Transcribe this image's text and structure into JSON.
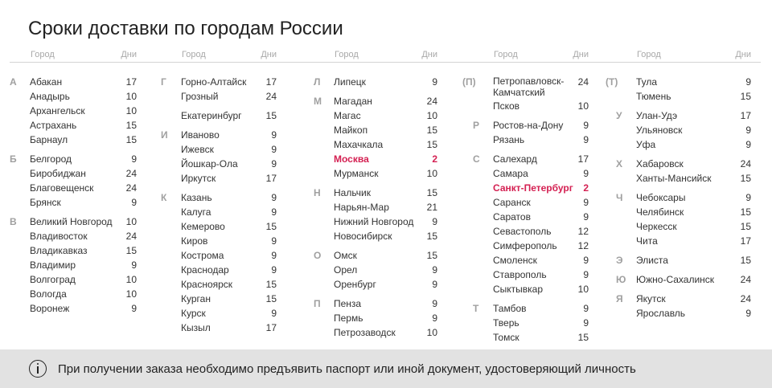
{
  "title": "Сроки доставки по городам России",
  "header": {
    "city": "Город",
    "days": "Дни"
  },
  "columns": [
    {
      "groups": [
        {
          "letter": "А",
          "rows": [
            {
              "city": "Абакан",
              "days": "17"
            },
            {
              "city": "Анадырь",
              "days": "10"
            },
            {
              "city": "Архангельск",
              "days": "10"
            },
            {
              "city": "Астрахань",
              "days": "15"
            },
            {
              "city": "Барнаул",
              "days": "15"
            }
          ]
        },
        {
          "letter": "Б",
          "rows": [
            {
              "city": "Белгород",
              "days": "9"
            },
            {
              "city": "Биробиджан",
              "days": "24"
            },
            {
              "city": "Благовещенск",
              "days": "24"
            },
            {
              "city": "Брянск",
              "days": "9"
            }
          ]
        },
        {
          "letter": "В",
          "rows": [
            {
              "city": "Великий Новгород",
              "days": "10"
            },
            {
              "city": "Владивосток",
              "days": "24"
            },
            {
              "city": "Владикавказ",
              "days": "15"
            },
            {
              "city": "Владимир",
              "days": "9"
            },
            {
              "city": "Волгоград",
              "days": "10"
            },
            {
              "city": "Вологда",
              "days": "10"
            },
            {
              "city": "Воронеж",
              "days": "9"
            }
          ]
        }
      ]
    },
    {
      "groups": [
        {
          "letter": "Г",
          "rows": [
            {
              "city": "Горно-Алтайск",
              "days": "17"
            },
            {
              "city": "Грозный",
              "days": "24"
            }
          ]
        },
        {
          "letter": "",
          "rows": [
            {
              "city": "Екатеринбург",
              "days": "15"
            }
          ]
        },
        {
          "letter": "И",
          "rows": [
            {
              "city": "Иваново",
              "days": "9"
            },
            {
              "city": "Ижевск",
              "days": "9"
            },
            {
              "city": "Йошкар-Ола",
              "days": "9"
            },
            {
              "city": "Иркутск",
              "days": "17"
            }
          ]
        },
        {
          "letter": "К",
          "rows": [
            {
              "city": "Казань",
              "days": "9"
            },
            {
              "city": "Калуга",
              "days": "9"
            },
            {
              "city": "Кемерово",
              "days": "15"
            },
            {
              "city": "Киров",
              "days": "9"
            },
            {
              "city": "Кострома",
              "days": "9"
            },
            {
              "city": "Краснодар",
              "days": "9"
            },
            {
              "city": "Красноярск",
              "days": "15"
            },
            {
              "city": "Курган",
              "days": "15"
            },
            {
              "city": "Курск",
              "days": "9"
            },
            {
              "city": "Кызыл",
              "days": "17"
            }
          ]
        }
      ]
    },
    {
      "groups": [
        {
          "letter": "Л",
          "rows": [
            {
              "city": "Липецк",
              "days": "9"
            }
          ]
        },
        {
          "letter": "М",
          "rows": [
            {
              "city": "Магадан",
              "days": "24"
            },
            {
              "city": "Магас",
              "days": "10"
            },
            {
              "city": "Майкоп",
              "days": "15"
            },
            {
              "city": "Махачкала",
              "days": "15"
            },
            {
              "city": "Москва",
              "days": "2",
              "highlight": true
            },
            {
              "city": "Мурманск",
              "days": "10"
            }
          ]
        },
        {
          "letter": "Н",
          "rows": [
            {
              "city": "Нальчик",
              "days": "15"
            },
            {
              "city": "Нарьян-Мар",
              "days": "21"
            },
            {
              "city": "Нижний Новгород",
              "days": "9"
            },
            {
              "city": "Новосибирск",
              "days": "15"
            }
          ]
        },
        {
          "letter": "О",
          "rows": [
            {
              "city": "Омск",
              "days": "15"
            },
            {
              "city": "Орел",
              "days": "9"
            },
            {
              "city": "Оренбург",
              "days": "9"
            }
          ]
        },
        {
          "letter": "П",
          "rows": [
            {
              "city": "Пенза",
              "days": "9"
            },
            {
              "city": "Пермь",
              "days": "9"
            },
            {
              "city": "Петрозаводск",
              "days": "10"
            }
          ]
        }
      ]
    },
    {
      "groups": [
        {
          "letter": "(П)",
          "rows": [
            {
              "city": "Петропавловск-Камчатский",
              "days": "24",
              "two": true
            },
            {
              "city": "Псков",
              "days": "10"
            }
          ]
        },
        {
          "letter": "Р",
          "rows": [
            {
              "city": "Ростов-на-Дону",
              "days": "9"
            },
            {
              "city": "Рязань",
              "days": "9"
            }
          ]
        },
        {
          "letter": "С",
          "rows": [
            {
              "city": "Салехард",
              "days": "17"
            },
            {
              "city": "Самара",
              "days": "9"
            },
            {
              "city": "Санкт-Петербург",
              "days": "2",
              "highlight": true
            },
            {
              "city": "Саранск",
              "days": "9"
            },
            {
              "city": "Саратов",
              "days": "9"
            },
            {
              "city": "Севастополь",
              "days": "12"
            },
            {
              "city": "Симферополь",
              "days": "12"
            },
            {
              "city": "Смоленск",
              "days": "9"
            },
            {
              "city": "Ставрополь",
              "days": "9"
            },
            {
              "city": "Сыктывкар",
              "days": "10"
            }
          ]
        },
        {
          "letter": "Т",
          "rows": [
            {
              "city": "Тамбов",
              "days": "9"
            },
            {
              "city": "Тверь",
              "days": "9"
            },
            {
              "city": "Томск",
              "days": "15"
            }
          ]
        }
      ]
    },
    {
      "groups": [
        {
          "letter": "(Т)",
          "rows": [
            {
              "city": "Тула",
              "days": "9"
            },
            {
              "city": "Тюмень",
              "days": "15"
            }
          ]
        },
        {
          "letter": "У",
          "rows": [
            {
              "city": "Улан-Удэ",
              "days": "17"
            },
            {
              "city": "Ульяновск",
              "days": "9"
            },
            {
              "city": "Уфа",
              "days": "9"
            }
          ]
        },
        {
          "letter": "Х",
          "rows": [
            {
              "city": "Хабаровск",
              "days": "24"
            },
            {
              "city": "Ханты-Мансийск",
              "days": "15"
            }
          ]
        },
        {
          "letter": "Ч",
          "rows": [
            {
              "city": "Чебоксары",
              "days": "9"
            },
            {
              "city": "Челябинск",
              "days": "15"
            },
            {
              "city": "Черкесск",
              "days": "15"
            },
            {
              "city": "Чита",
              "days": "17"
            }
          ]
        },
        {
          "letter": "Э",
          "rows": [
            {
              "city": "Элиста",
              "days": "15"
            }
          ]
        },
        {
          "letter": "Ю",
          "rows": [
            {
              "city": "Южно-Сахалинск",
              "days": "24"
            }
          ]
        },
        {
          "letter": "Я",
          "rows": [
            {
              "city": "Якутск",
              "days": "24"
            },
            {
              "city": "Ярославль",
              "days": "9"
            }
          ]
        }
      ]
    }
  ],
  "footer": {
    "icon": "info-icon",
    "text": "При получении заказа необходимо предъявить паспорт или иной документ, удостоверяющий личность"
  },
  "colors": {
    "highlight": "#d42052",
    "footer_bg": "#e2e2e2",
    "muted": "#a0a0a0"
  }
}
